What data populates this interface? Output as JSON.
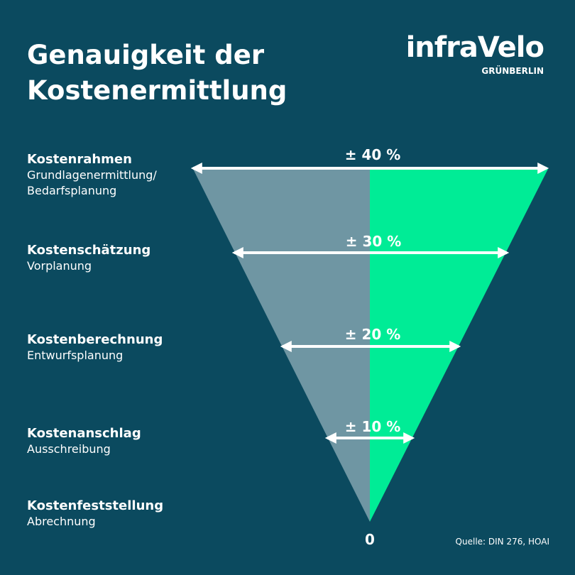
{
  "header": {
    "title_lines": [
      "Genauigkeit der",
      "Kostenermittlung"
    ],
    "logo": "infraVelo",
    "logo_sub": "GRÜNBERLIN"
  },
  "stages": [
    {
      "name": "Kostenrahmen",
      "description": [
        "Grundlagenermittlung/",
        "Bedarfsplanung"
      ],
      "accuracy": "± 40 %"
    },
    {
      "name": "Kostenschätzung",
      "description": [
        "Vorplanung"
      ],
      "accuracy": "± 30 %"
    },
    {
      "name": "Kostenberechnung",
      "description": [
        "Entwurfsplanung"
      ],
      "accuracy": "± 20 %"
    },
    {
      "name": "Kostenanschlag",
      "description": [
        "Ausschreibung"
      ],
      "accuracy": "± 10 %"
    },
    {
      "name": "Kostenfeststellung",
      "description": [
        "Abrechnung"
      ],
      "accuracy": "0"
    }
  ],
  "source": "Quelle: DIN 276, HOAI"
}
